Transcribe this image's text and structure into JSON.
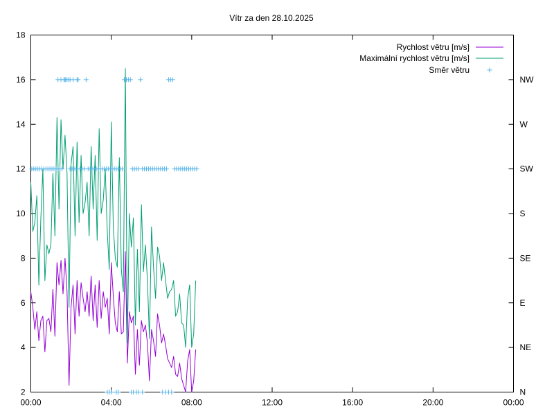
{
  "chart_data": {
    "type": "line",
    "title": "Vítr za den 28.10.2025",
    "x_range_hours": [
      0,
      24
    ],
    "x_ticks": [
      {
        "hour": 0,
        "label": "00:00"
      },
      {
        "hour": 4,
        "label": "04:00"
      },
      {
        "hour": 8,
        "label": "08:00"
      },
      {
        "hour": 12,
        "label": "12:00"
      },
      {
        "hour": 16,
        "label": "16:00"
      },
      {
        "hour": 20,
        "label": "20:00"
      },
      {
        "hour": 24,
        "label": "00:00"
      }
    ],
    "y_range": [
      2,
      18
    ],
    "y_ticks": [
      2,
      4,
      6,
      8,
      10,
      12,
      14,
      16,
      18
    ],
    "y2_ticks": [
      {
        "value": 2,
        "label": "N"
      },
      {
        "value": 4,
        "label": "NE"
      },
      {
        "value": 6,
        "label": "E"
      },
      {
        "value": 8,
        "label": "SE"
      },
      {
        "value": 10,
        "label": "S"
      },
      {
        "value": 12,
        "label": "SW"
      },
      {
        "value": 14,
        "label": "W"
      },
      {
        "value": 16,
        "label": "NW"
      }
    ],
    "grid": false,
    "legend_position": "top-right",
    "series": [
      {
        "name": "Rychlost větru [m/s]",
        "style": "line",
        "color": "#9400d3",
        "x": [
          0.0,
          0.1,
          0.2,
          0.3,
          0.4,
          0.5,
          0.6,
          0.7,
          0.8,
          0.9,
          1.0,
          1.1,
          1.2,
          1.3,
          1.4,
          1.5,
          1.6,
          1.7,
          1.8,
          1.9,
          2.0,
          2.1,
          2.2,
          2.3,
          2.4,
          2.5,
          2.6,
          2.7,
          2.8,
          2.9,
          3.0,
          3.1,
          3.2,
          3.3,
          3.4,
          3.5,
          3.6,
          3.7,
          3.8,
          3.9,
          4.0,
          4.1,
          4.2,
          4.3,
          4.4,
          4.5,
          4.6,
          4.7,
          4.8,
          4.9,
          5.0,
          5.1,
          5.2,
          5.3,
          5.4,
          5.5,
          5.6,
          5.7,
          5.8,
          5.9,
          6.0,
          6.1,
          6.2,
          6.3,
          6.4,
          6.5,
          6.6,
          6.7,
          6.8,
          6.9,
          7.0,
          7.1,
          7.2,
          7.3,
          7.4,
          7.5,
          7.6,
          7.7,
          7.8,
          7.9,
          8.0,
          8.1,
          8.2
        ],
        "values": [
          6.5,
          5.8,
          4.8,
          5.6,
          4.3,
          5.2,
          5.4,
          3.8,
          5.2,
          5.3,
          4.7,
          6.6,
          4.5,
          7.8,
          6.8,
          7.9,
          6.4,
          8.0,
          6.5,
          2.3,
          5.8,
          6.8,
          4.6,
          7.0,
          5.4,
          6.9,
          6.2,
          5.6,
          6.5,
          5.4,
          7.2,
          5.2,
          6.8,
          4.9,
          7.0,
          5.3,
          6.5,
          5.8,
          6.2,
          4.6,
          7.8,
          6.3,
          5.1,
          4.7,
          6.5,
          4.6,
          4.7,
          8.3,
          3.3,
          5.6,
          5.1,
          5.4,
          2.8,
          4.8,
          3.2,
          5.2,
          4.7,
          5.0,
          4.2,
          2.5,
          4.8,
          4.3,
          3.6,
          5.5,
          5.0,
          4.2,
          4.6,
          4.1,
          3.5,
          3.3,
          3.1,
          3.6,
          2.8,
          2.7,
          3.3,
          2.6,
          2.3,
          2.0,
          3.4,
          3.9,
          2.0,
          2.5,
          3.9
        ]
      },
      {
        "name": "Maximální rychlost větru [m/s]",
        "style": "line",
        "color": "#009e73",
        "x": [
          0.0,
          0.1,
          0.2,
          0.3,
          0.4,
          0.5,
          0.6,
          0.7,
          0.8,
          0.9,
          1.0,
          1.1,
          1.2,
          1.3,
          1.4,
          1.5,
          1.6,
          1.7,
          1.8,
          1.9,
          2.0,
          2.1,
          2.2,
          2.3,
          2.4,
          2.5,
          2.6,
          2.7,
          2.8,
          2.9,
          3.0,
          3.1,
          3.2,
          3.3,
          3.4,
          3.5,
          3.6,
          3.7,
          3.8,
          3.9,
          4.0,
          4.1,
          4.2,
          4.3,
          4.4,
          4.5,
          4.6,
          4.7,
          4.8,
          4.9,
          5.0,
          5.1,
          5.2,
          5.3,
          5.4,
          5.5,
          5.6,
          5.7,
          5.8,
          5.9,
          6.0,
          6.1,
          6.2,
          6.3,
          6.4,
          6.5,
          6.6,
          6.7,
          6.8,
          6.9,
          7.0,
          7.1,
          7.2,
          7.3,
          7.4,
          7.5,
          7.6,
          7.7,
          7.8,
          7.9,
          8.0,
          8.1,
          8.2
        ],
        "values": [
          11.4,
          9.2,
          9.6,
          10.8,
          6.8,
          9.8,
          12.0,
          7.0,
          8.6,
          8.2,
          8.6,
          11.8,
          9.0,
          14.3,
          10.2,
          14.2,
          12.0,
          13.5,
          11.8,
          5.8,
          12.2,
          13.0,
          9.0,
          13.2,
          9.6,
          12.6,
          10.0,
          10.5,
          11.4,
          9.0,
          13.0,
          10.2,
          12.6,
          8.8,
          13.8,
          10.0,
          10.6,
          12.0,
          9.2,
          7.5,
          14.1,
          9.4,
          8.0,
          7.6,
          12.5,
          7.5,
          6.5,
          16.5,
          4.2,
          10.0,
          8.5,
          9.8,
          5.0,
          8.4,
          5.6,
          10.4,
          7.4,
          8.6,
          7.0,
          4.4,
          9.4,
          7.6,
          6.2,
          8.5,
          8.1,
          7.0,
          7.8,
          7.0,
          6.2,
          6.5,
          6.6,
          7.0,
          5.4,
          5.6,
          6.4,
          5.1,
          5.0,
          4.0,
          6.2,
          6.8,
          4.0,
          4.6,
          7.0
        ]
      },
      {
        "name": "Směr větru",
        "style": "points",
        "color": "#56b4e9",
        "x": [
          0.05,
          0.15,
          0.25,
          0.35,
          0.45,
          0.55,
          0.65,
          0.75,
          0.85,
          0.95,
          1.05,
          1.15,
          1.25,
          1.35,
          1.45,
          1.55,
          1.65,
          1.75,
          1.85,
          1.95,
          2.05,
          2.15,
          2.25,
          2.35,
          2.45,
          2.55,
          2.65,
          2.75,
          2.85,
          2.95,
          3.05,
          3.15,
          3.25,
          3.35,
          3.45,
          3.55,
          3.65,
          3.75,
          3.85,
          3.95,
          4.05,
          4.15,
          4.25,
          4.35,
          4.45,
          4.55,
          4.65,
          4.75,
          4.85,
          4.95,
          5.05,
          5.15,
          5.25,
          5.35,
          5.45,
          5.55,
          5.65,
          5.75,
          5.85,
          5.95,
          6.05,
          6.15,
          6.25,
          6.35,
          6.45,
          6.55,
          6.65,
          6.75,
          6.85,
          6.95,
          7.05,
          7.15,
          7.25,
          7.35,
          7.45,
          7.55,
          7.65,
          7.75,
          7.85,
          7.95,
          8.05,
          8.15,
          8.25,
          1.35,
          1.5,
          1.7,
          1.75,
          1.95,
          2.1,
          2.3,
          3.8,
          3.9,
          4.0,
          4.25,
          4.35,
          5.0,
          5.1,
          5.25,
          5.35,
          5.55,
          6.55,
          6.7,
          6.85,
          7.0
        ],
        "values": [
          12,
          12,
          12,
          12,
          12,
          12,
          12,
          12,
          12,
          12,
          12,
          12,
          12,
          12,
          12,
          12,
          16,
          16,
          16,
          12,
          12,
          12,
          12,
          16,
          12,
          12,
          12,
          16,
          12,
          12,
          12,
          12,
          12,
          12,
          12,
          12,
          12,
          12,
          12,
          12,
          12,
          12,
          12,
          12,
          12,
          12,
          16,
          16,
          16,
          16,
          12,
          12,
          12,
          12,
          16,
          12,
          12,
          12,
          12,
          12,
          12,
          12,
          12,
          12,
          12,
          12,
          12,
          12,
          16,
          16,
          16,
          12,
          12,
          12,
          12,
          12,
          12,
          12,
          12,
          12,
          12,
          12,
          12,
          16,
          16,
          16,
          16,
          16,
          16,
          16,
          2,
          2,
          2,
          2,
          2,
          2,
          2,
          2,
          2,
          2,
          2,
          2,
          2,
          2
        ]
      }
    ]
  }
}
